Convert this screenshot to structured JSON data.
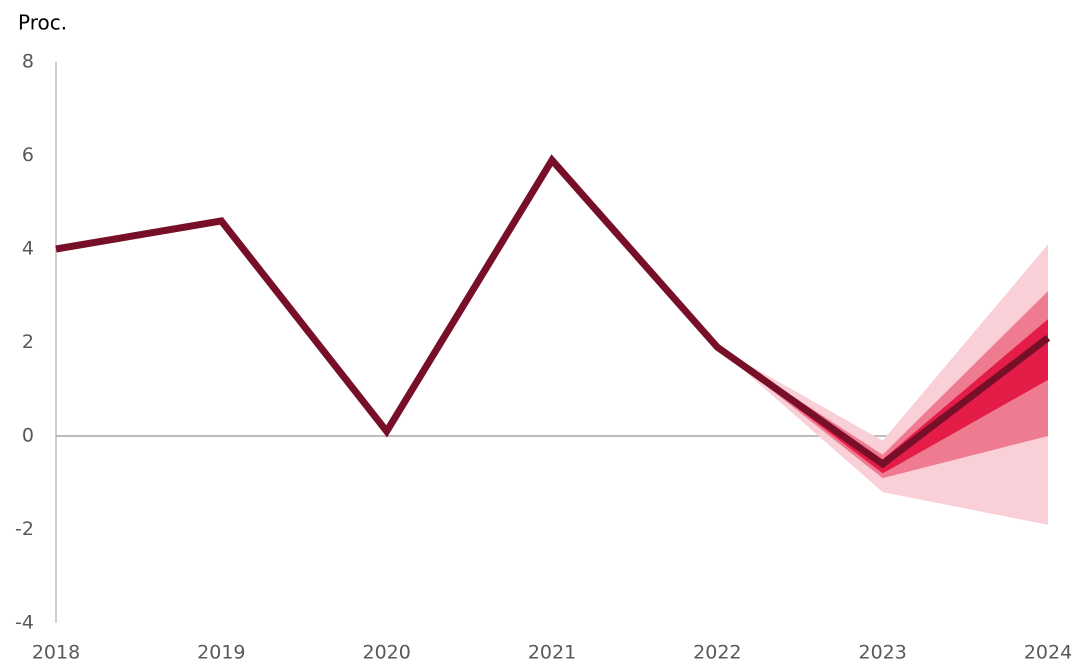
{
  "chart_data": {
    "type": "line",
    "y_label": "Proc.",
    "categories": [
      "2018",
      "2019",
      "2020",
      "2021",
      "2022",
      "2023",
      "2024"
    ],
    "series": [
      {
        "color": "#780f28",
        "values": [
          4.0,
          4.6,
          0.1,
          5.9,
          1.9,
          -0.6,
          2.1
        ]
      }
    ],
    "bands": [
      {
        "color": "#f9d0d8",
        "upper": [
          null,
          null,
          null,
          null,
          1.9,
          -0.1,
          4.1
        ],
        "lower": [
          null,
          null,
          null,
          null,
          1.9,
          -1.2,
          -1.9
        ]
      },
      {
        "color": "#ef7b90",
        "upper": [
          null,
          null,
          null,
          null,
          1.9,
          -0.4,
          3.1
        ],
        "lower": [
          null,
          null,
          null,
          null,
          1.9,
          -0.9,
          0.0
        ]
      },
      {
        "color": "#e31c48",
        "upper": [
          null,
          null,
          null,
          null,
          1.9,
          -0.5,
          2.5
        ],
        "lower": [
          null,
          null,
          null,
          null,
          1.9,
          -0.8,
          1.2
        ]
      }
    ],
    "ylim": [
      -4,
      8
    ],
    "yticks": [
      -4,
      -2,
      0,
      2,
      4,
      6,
      8
    ],
    "grid": false
  }
}
